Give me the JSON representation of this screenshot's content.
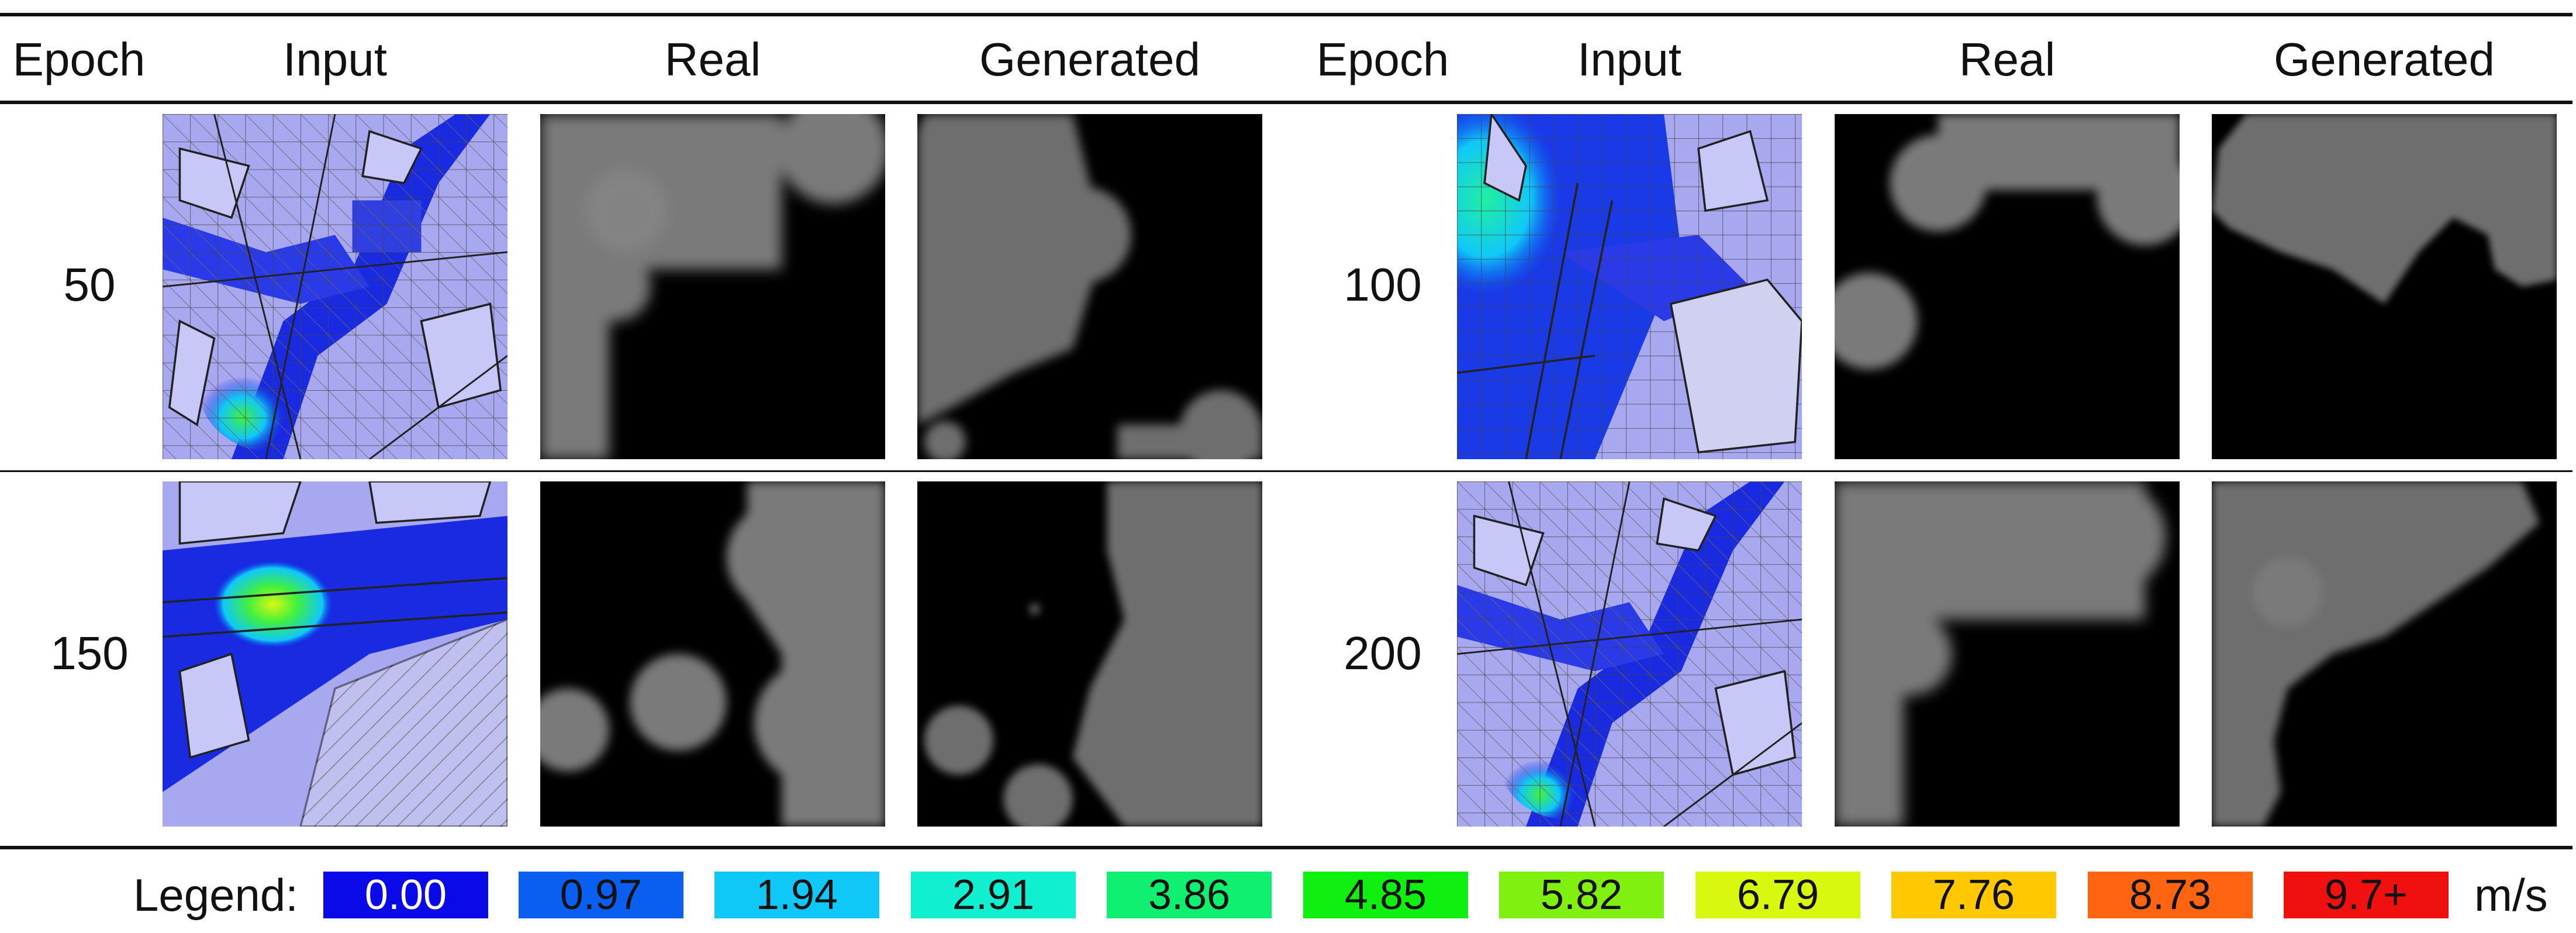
{
  "headers": [
    "Epoch",
    "Input",
    "Real",
    "Generated",
    "Epoch",
    "Input",
    "Real",
    "Generated"
  ],
  "rows": [
    {
      "epoch": "50"
    },
    {
      "epoch": "100"
    },
    {
      "epoch": "150"
    },
    {
      "epoch": "200"
    }
  ],
  "legend": {
    "label": "Legend:",
    "unit": "m/s",
    "items": [
      {
        "value": "0.00",
        "color": "#0a0ae8",
        "text_color": "#ffffff"
      },
      {
        "value": "0.97",
        "color": "#0a5ef0",
        "text_color": "#111111"
      },
      {
        "value": "1.94",
        "color": "#10c8f8",
        "text_color": "#111111"
      },
      {
        "value": "2.91",
        "color": "#10f0d0",
        "text_color": "#111111"
      },
      {
        "value": "3.86",
        "color": "#10f070",
        "text_color": "#111111"
      },
      {
        "value": "4.85",
        "color": "#10f010",
        "text_color": "#111111"
      },
      {
        "value": "5.82",
        "color": "#80f010",
        "text_color": "#111111"
      },
      {
        "value": "6.79",
        "color": "#d8f810",
        "text_color": "#111111"
      },
      {
        "value": "7.76",
        "color": "#ffc800",
        "text_color": "#111111"
      },
      {
        "value": "8.73",
        "color": "#ff6410",
        "text_color": "#111111"
      },
      {
        "value": "9.7+",
        "color": "#f01010",
        "text_color": "#111111"
      }
    ]
  }
}
